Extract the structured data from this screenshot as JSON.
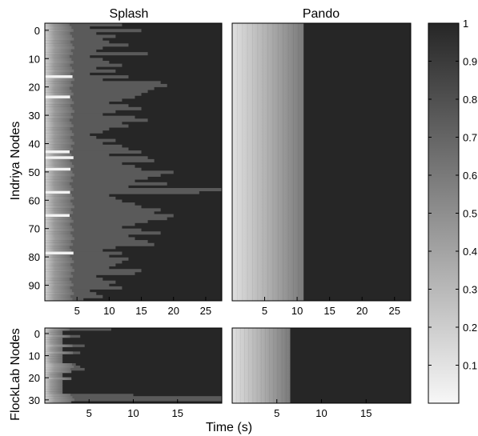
{
  "chart_data": [
    {
      "type": "heatmap",
      "title": "Splash",
      "ylabel": "Indriya Nodes",
      "xlabel": "",
      "xlim": [
        0,
        27.5
      ],
      "ylim": [
        -2.5,
        95.5
      ],
      "xticks": [
        "5",
        "10",
        "15",
        "20",
        "25"
      ],
      "yticks": [
        "0",
        "10",
        "20",
        "30",
        "40",
        "50",
        "60",
        "70",
        "80",
        "90"
      ],
      "note_values": "per-node reception completion times (s), approximate",
      "completion_times": [
        12,
        7,
        15,
        8,
        11,
        9,
        10,
        13,
        9,
        8,
        16,
        7,
        9,
        10,
        12,
        8,
        11,
        7,
        13,
        9,
        18,
        19,
        17,
        16,
        15,
        14,
        12,
        10,
        13,
        15,
        11,
        9,
        14,
        16,
        12,
        13,
        10,
        9,
        7,
        8,
        11,
        9,
        12,
        13,
        15,
        10,
        16,
        17,
        12,
        14,
        15,
        20,
        18,
        16,
        14,
        19,
        13,
        27.5,
        24,
        10,
        11,
        12,
        14,
        15,
        18,
        17,
        20,
        19,
        16,
        14,
        12,
        15,
        18,
        13,
        14,
        16,
        17,
        11,
        9,
        12,
        10,
        13,
        12,
        11,
        10,
        15,
        14,
        8,
        9,
        11,
        10,
        12,
        7,
        8,
        9,
        6
      ],
      "bright_rows": [
        18,
        25,
        44,
        46,
        50,
        58,
        66,
        79
      ]
    },
    {
      "type": "heatmap",
      "title": "Pando",
      "xlabel": "",
      "ylabel": "",
      "xlim": [
        0,
        27.5
      ],
      "ylim": [
        -2.5,
        95.5
      ],
      "xticks": [
        "5",
        "10",
        "15",
        "20",
        "25"
      ],
      "completion_time": 11
    },
    {
      "type": "heatmap",
      "title": "",
      "ylabel": "FlockLab Nodes",
      "xlabel": "",
      "xlim": [
        0,
        20
      ],
      "ylim": [
        -2.5,
        31.5
      ],
      "xticks": [
        "5",
        "10",
        "15"
      ],
      "yticks": [
        "0",
        "10",
        "20",
        "30"
      ],
      "note_values": "per-node reception completion times (s), approximate",
      "completion_times": [
        7.5,
        2,
        2,
        4,
        2,
        2,
        2,
        4.5,
        2,
        2,
        4,
        2,
        2,
        2,
        2,
        3.5,
        4,
        4.5,
        3,
        2,
        2,
        3,
        2,
        2,
        2,
        2,
        2,
        2,
        10,
        20,
        20,
        3
      ]
    },
    {
      "type": "heatmap",
      "title": "",
      "xlabel": "Time (s)",
      "ylabel": "",
      "xlim": [
        0,
        20
      ],
      "ylim": [
        -2.5,
        31.5
      ],
      "xticks": [
        "5",
        "10",
        "15"
      ],
      "completion_time": 6.5
    }
  ],
  "colorbar": {
    "ticks": [
      "0.1",
      "0.2",
      "0.3",
      "0.4",
      "0.5",
      "0.6",
      "0.7",
      "0.8",
      "0.9",
      "1"
    ],
    "range": [
      0,
      1
    ]
  },
  "background_color": "#262626"
}
